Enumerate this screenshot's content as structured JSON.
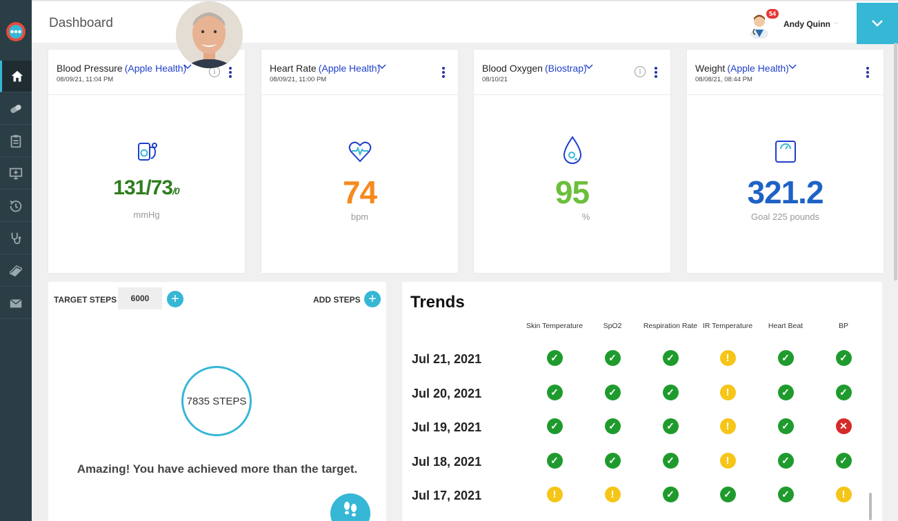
{
  "header": {
    "title": "Dashboard",
    "notification_count": "54",
    "user_name": "Andy Quinn",
    "user_caret": "··"
  },
  "sidebar": {
    "items": [
      {
        "icon": "home-icon"
      },
      {
        "icon": "pill-icon"
      },
      {
        "icon": "clipboard-icon"
      },
      {
        "icon": "monitor-icon"
      },
      {
        "icon": "history-icon"
      },
      {
        "icon": "stethoscope-icon"
      },
      {
        "icon": "book-icon"
      },
      {
        "icon": "mail-icon"
      }
    ]
  },
  "cards": [
    {
      "title": "Blood Pressure",
      "source": "(Apple Health)",
      "date": "08/09/21, 11:04 PM",
      "value": "131/73",
      "value_suffix": "/0",
      "unit": "mmHg",
      "color": "#2e7d1e"
    },
    {
      "title": "Heart Rate",
      "source": "(Apple Health)",
      "date": "08/09/21, 11:00 PM",
      "value": "74",
      "unit": "bpm",
      "color": "#f58a1f"
    },
    {
      "title": "Blood Oxygen",
      "source": "(Biostrap)",
      "date": "08/10/21",
      "value": "95",
      "unit": "%",
      "color": "#6cbf3c"
    },
    {
      "title": "Weight",
      "source": "(Apple Health)",
      "date": "08/08/21, 08:44 PM",
      "value": "321.2",
      "unit": "Goal  225 pounds",
      "color": "#1e62c4"
    }
  ],
  "steps": {
    "target_label": "TARGET STEPS",
    "target_value": "6000",
    "add_label": "ADD STEPS",
    "plus": "+",
    "count_text": "7835 STEPS",
    "message": "Amazing! You have achieved more than the target."
  },
  "trends": {
    "title": "Trends",
    "columns": [
      "Skin Temperature",
      "SpO2",
      "Respiration Rate",
      "IR Temperature",
      "Heart Beat",
      "BP"
    ],
    "rows": [
      {
        "date": "Jul 21, 2021",
        "statuses": [
          "ok",
          "ok",
          "ok",
          "warn",
          "ok",
          "ok"
        ]
      },
      {
        "date": "Jul 20, 2021",
        "statuses": [
          "ok",
          "ok",
          "ok",
          "warn",
          "ok",
          "ok"
        ]
      },
      {
        "date": "Jul 19, 2021",
        "statuses": [
          "ok",
          "ok",
          "ok",
          "warn",
          "ok",
          "bad"
        ]
      },
      {
        "date": "Jul 18, 2021",
        "statuses": [
          "ok",
          "ok",
          "ok",
          "warn",
          "ok",
          "ok"
        ]
      },
      {
        "date": "Jul 17, 2021",
        "statuses": [
          "warn",
          "warn",
          "ok",
          "ok",
          "ok",
          "warn"
        ]
      }
    ]
  },
  "colors": {
    "accent": "#36b7d6",
    "ok": "#1f9b2e",
    "warn": "#f5c518",
    "bad": "#d52a2a"
  }
}
